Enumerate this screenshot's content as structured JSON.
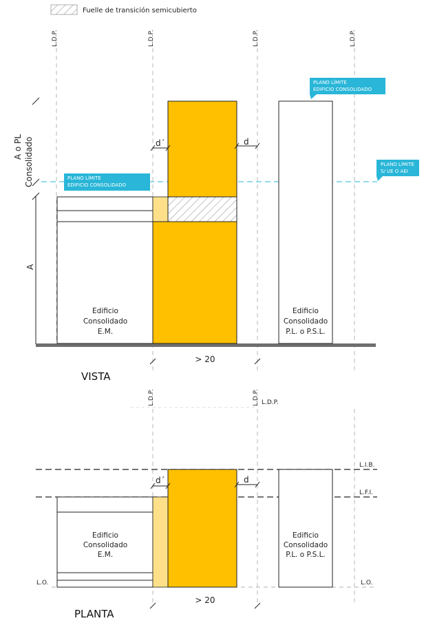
{
  "legend": {
    "label": "Fuelle de transición semicubierto"
  },
  "colors": {
    "accent": "#FFC000",
    "accent_light": "#FFE08A",
    "callout": "#29B6D8",
    "ground": "#6E6E6E",
    "line": "#222222"
  },
  "vista": {
    "title": "VISTA",
    "ldp_markers": [
      "L.D.P.",
      "L.D.P.",
      "L.D.P.",
      "L.D.P."
    ],
    "axis_height_label": "A",
    "axis_top_label_1": "A o PL",
    "axis_top_label_2": "Consolidado",
    "callout_left": [
      "PLANO LÍMITE",
      "EDIFICIO CONSOLIDADO"
    ],
    "callout_right_top": [
      "PLANO LÍMITE",
      "EDIFICIO CONSOLIDADO"
    ],
    "callout_right": [
      "PLANO LÍMITE",
      "S/ UE O AEI"
    ],
    "dim_d_prime": "d´",
    "dim_d": "d",
    "dim_width": "> 20",
    "building_left": [
      "Edificio",
      "Consolidado",
      "E.M."
    ],
    "building_right": [
      "Edificio",
      "Consolidado",
      "P.L.  o P.S.L."
    ]
  },
  "planta": {
    "title": "PLANTA",
    "ldp_markers": [
      "L.D.P.",
      "L.D.P."
    ],
    "ldp_extra": "L.D.P.",
    "line_lib": "L.I.B.",
    "line_lfi": "L.F.I.",
    "lo_left": "L.O.",
    "lo_right": "L.O.",
    "dim_d_prime": "d´",
    "dim_d": "d",
    "dim_width": "> 20",
    "building_left": [
      "Edificio",
      "Consolidado",
      "E.M."
    ],
    "building_right": [
      "Edificio",
      "Consolidado",
      "P.L. o P.S.L."
    ]
  }
}
